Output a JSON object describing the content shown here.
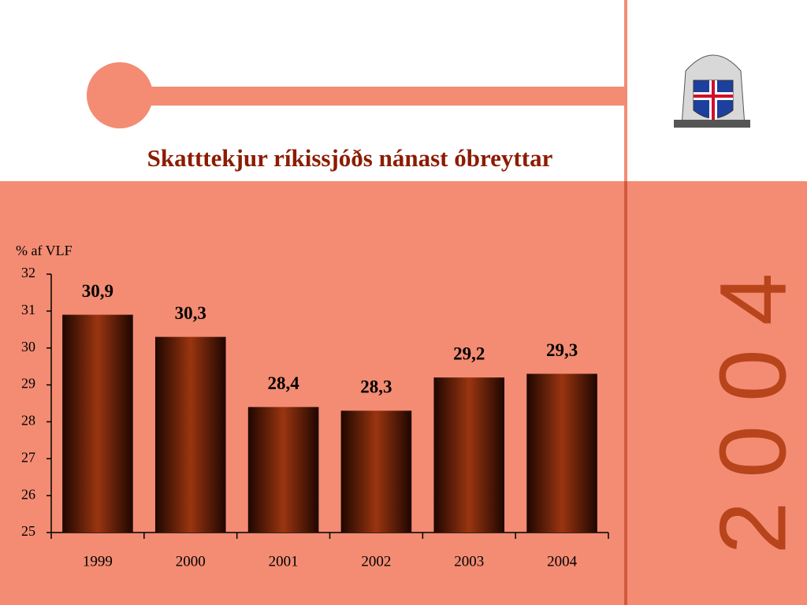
{
  "chart_data": {
    "type": "bar",
    "title": "Skatttekjur ríkissjóðs nánast óbreyttar",
    "y_label": "% af VLF",
    "side_label": "2004",
    "categories": [
      "1999",
      "2000",
      "2001",
      "2002",
      "2003",
      "2004"
    ],
    "values": [
      30.9,
      30.3,
      28.4,
      28.3,
      29.2,
      29.3
    ],
    "value_labels": [
      "30,9",
      "30,3",
      "28,4",
      "28,3",
      "29,2",
      "29,3"
    ],
    "color": "#9a3510",
    "ylim": [
      25,
      32
    ],
    "yticks": [
      25,
      26,
      27,
      28,
      29,
      30,
      31,
      32
    ],
    "grid": false
  }
}
